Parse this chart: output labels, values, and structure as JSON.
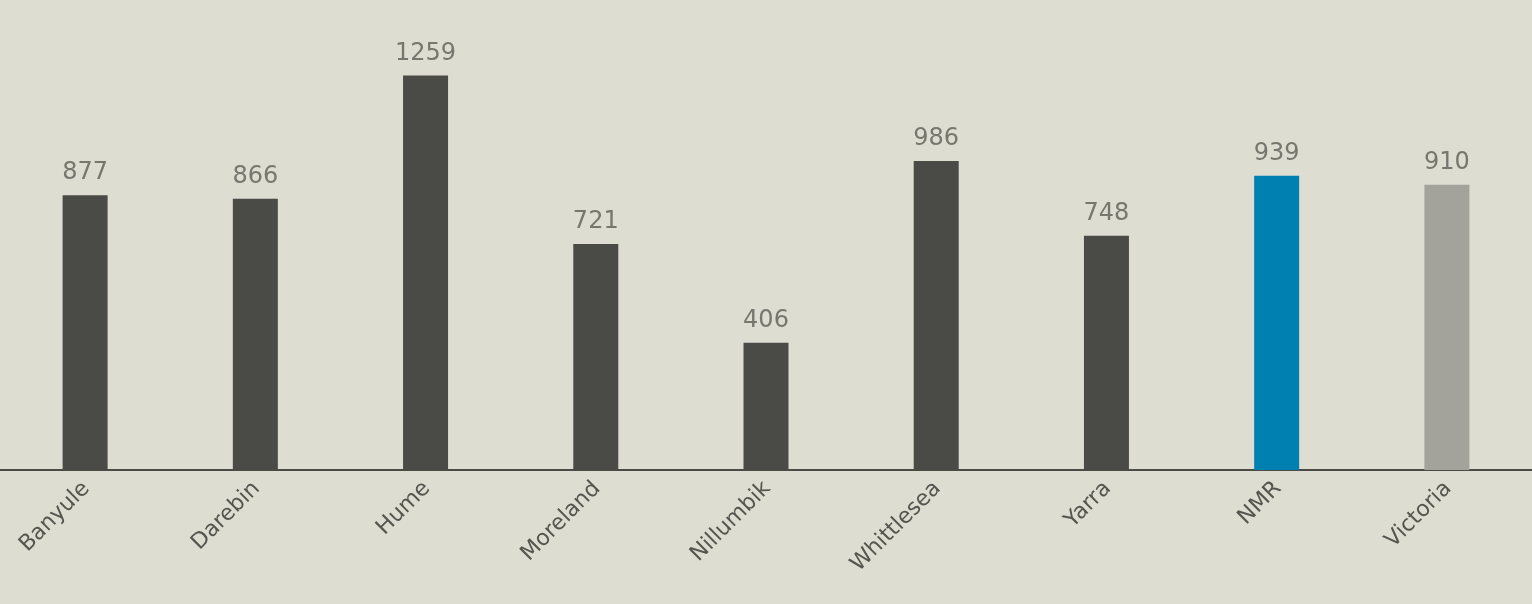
{
  "chart_data": {
    "type": "bar",
    "categories": [
      "Banyule",
      "Darebin",
      "Hume",
      "Moreland",
      "Nillumbik",
      "Whittlesea",
      "Yarra",
      "NMR",
      "Victoria"
    ],
    "values": [
      877,
      866,
      1259,
      721,
      406,
      986,
      748,
      939,
      910
    ],
    "colors": [
      "#4a4a47",
      "#4a4a47",
      "#4a4a47",
      "#4a4a47",
      "#4a4a47",
      "#4a4a47",
      "#4a4a47",
      "#0080b0",
      "#a3a39b"
    ],
    "data_labels": true
  }
}
